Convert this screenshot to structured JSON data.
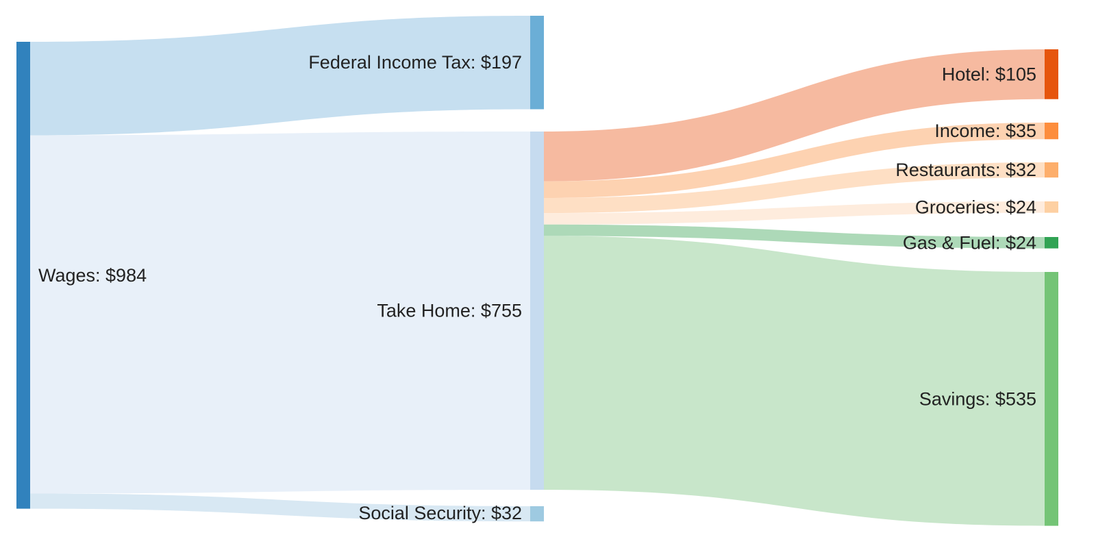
{
  "chart_data": {
    "type": "sankey",
    "title": "",
    "nodes": [
      {
        "id": "wages",
        "label": "Wages: $984",
        "value": 984,
        "color": "#3182bd"
      },
      {
        "id": "federal",
        "label": "Federal Income Tax: $197",
        "value": 197,
        "color": "#6baed6"
      },
      {
        "id": "takehome",
        "label": "Take Home: $755",
        "value": 755,
        "color": "#c6dbef"
      },
      {
        "id": "social",
        "label": "Social Security: $32",
        "value": 32,
        "color": "#9ecae1"
      },
      {
        "id": "hotel",
        "label": "Hotel: $105",
        "value": 105,
        "color": "#e6550d"
      },
      {
        "id": "income",
        "label": "Income: $35",
        "value": 35,
        "color": "#fd8d3c"
      },
      {
        "id": "restaurants",
        "label": "Restaurants: $32",
        "value": 32,
        "color": "#fdae6b"
      },
      {
        "id": "groceries",
        "label": "Groceries: $24",
        "value": 24,
        "color": "#fdd0a2"
      },
      {
        "id": "gas",
        "label": "Gas & Fuel: $24",
        "value": 24,
        "color": "#31a354"
      },
      {
        "id": "savings",
        "label": "Savings: $535",
        "value": 535,
        "color": "#74c476"
      }
    ],
    "links": [
      {
        "source": "wages",
        "target": "federal",
        "value": 197,
        "color": "#c6dff0"
      },
      {
        "source": "wages",
        "target": "takehome",
        "value": 755,
        "color": "#e8f0f9"
      },
      {
        "source": "wages",
        "target": "social",
        "value": 32,
        "color": "#d8e8f3"
      },
      {
        "source": "takehome",
        "target": "hotel",
        "value": 105,
        "color": "#f6baa0"
      },
      {
        "source": "takehome",
        "target": "income",
        "value": 35,
        "color": "#fdd2b1"
      },
      {
        "source": "takehome",
        "target": "restaurants",
        "value": 32,
        "color": "#fedfc4"
      },
      {
        "source": "takehome",
        "target": "groceries",
        "value": 24,
        "color": "#feecdd"
      },
      {
        "source": "takehome",
        "target": "gas",
        "value": 24,
        "color": "#add9b8"
      },
      {
        "source": "takehome",
        "target": "savings",
        "value": 535,
        "color": "#c8e6ca"
      }
    ]
  }
}
